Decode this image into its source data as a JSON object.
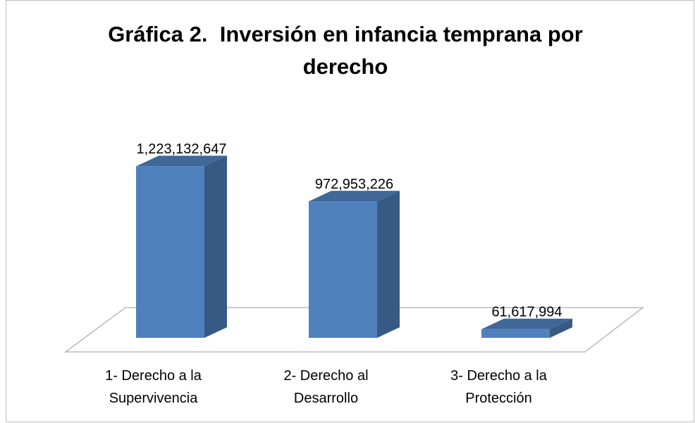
{
  "chart_data": {
    "type": "bar3d",
    "title": "Gráfica 2.  Inversión en infancia temprana por derecho",
    "categories": [
      "1- Derecho a la Supervivencia",
      "2- Derecho al Desarrollo",
      "3- Derecho a la Protección"
    ],
    "values": [
      1223132647,
      972953226,
      61617994
    ],
    "value_labels": [
      "1,223,132,647",
      "972,953,226",
      "61,617,994"
    ],
    "color": "#4f81bd",
    "ylim": [
      0,
      1400000000
    ]
  }
}
